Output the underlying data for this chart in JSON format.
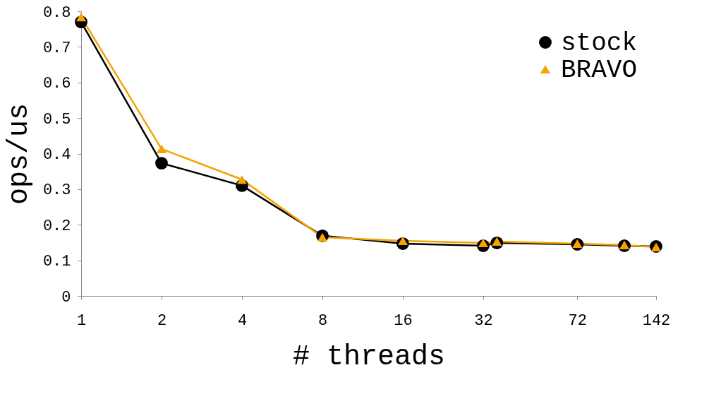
{
  "chart_data": {
    "type": "line",
    "xlabel": "# threads",
    "ylabel": "ops/us",
    "log": "x",
    "x": [
      1,
      2,
      4,
      8,
      16,
      32,
      36,
      72,
      108,
      142
    ],
    "series": [
      {
        "name": "stock",
        "color": "#000000",
        "marker": "circle",
        "values": [
          0.77,
          0.373,
          0.31,
          0.169,
          0.147,
          0.141,
          0.149,
          0.145,
          0.141,
          0.139
        ]
      },
      {
        "name": "BRAVO",
        "color": "#f5a300",
        "marker": "triangle",
        "values": [
          0.784,
          0.413,
          0.327,
          0.165,
          0.155,
          0.149,
          0.153,
          0.147,
          0.143,
          0.137
        ]
      }
    ],
    "xlim": [
      1,
      142
    ],
    "xticks": [
      1,
      2,
      4,
      8,
      16,
      32,
      72,
      142
    ],
    "ylim": [
      0,
      0.8
    ],
    "yticks": [
      0,
      0.1,
      0.2,
      0.3,
      0.4,
      0.5,
      0.6,
      0.7,
      0.8
    ],
    "grid": false,
    "legend": "top right",
    "line_style": "solid"
  }
}
